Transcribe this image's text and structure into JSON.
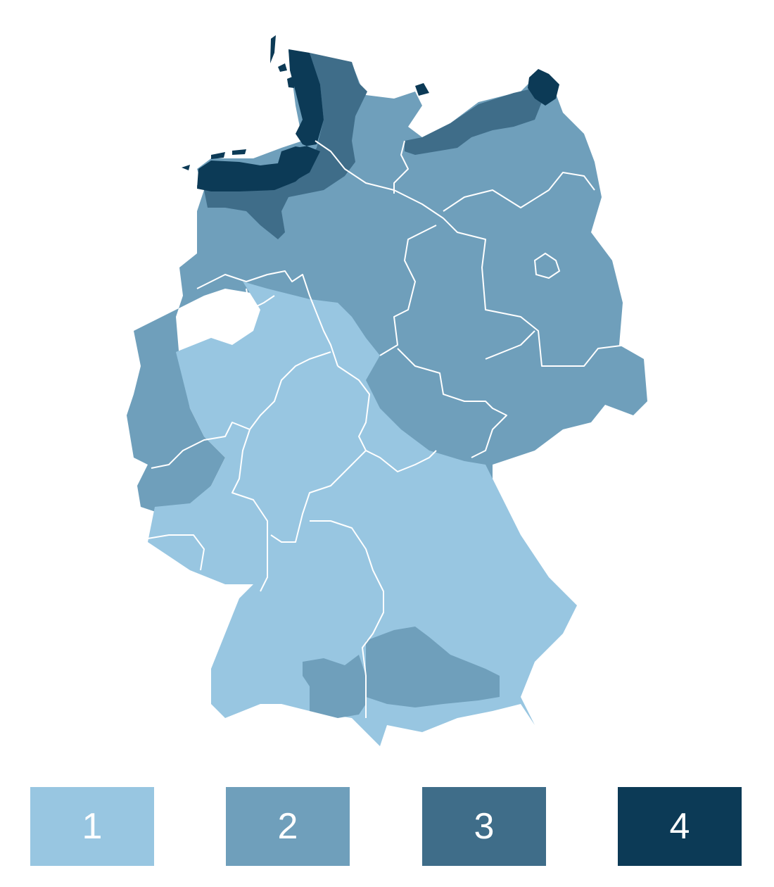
{
  "zone_colors": {
    "1": "#98c6e1",
    "2": "#6f9fbb",
    "3": "#3f6d89",
    "4": "#0c3a56"
  },
  "legend": {
    "items": [
      {
        "label": "1",
        "color": "#98c6e1"
      },
      {
        "label": "2",
        "color": "#6f9fbb"
      },
      {
        "label": "3",
        "color": "#3f6d89"
      },
      {
        "label": "4",
        "color": "#0c3a56"
      }
    ]
  }
}
